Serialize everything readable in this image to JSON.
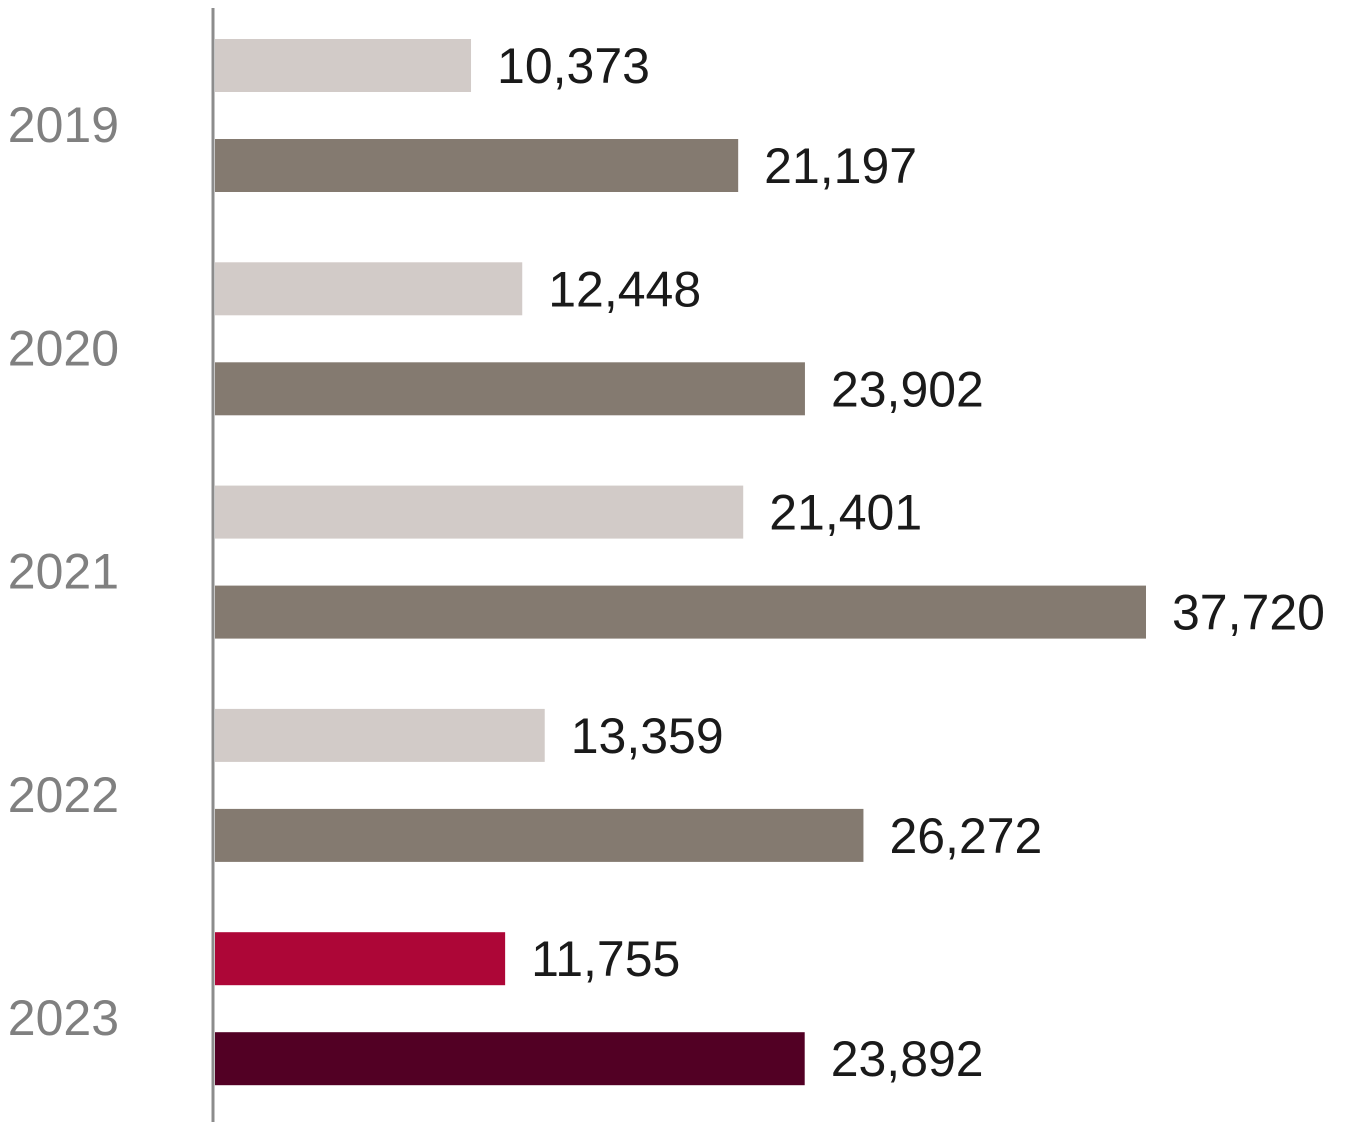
{
  "chart_data": {
    "type": "bar",
    "orientation": "horizontal",
    "categories": [
      "2019",
      "2020",
      "2021",
      "2022",
      "2023"
    ],
    "series": [
      {
        "values": [
          10373,
          12448,
          21401,
          13359,
          11755
        ]
      },
      {
        "values": [
          21197,
          23902,
          37720,
          26272,
          23892
        ]
      }
    ],
    "value_labels": [
      [
        "10,373",
        "12,448",
        "21,401",
        "13,359",
        "11,755"
      ],
      [
        "21,197",
        "23,902",
        "37,720",
        "26,272",
        "23,892"
      ]
    ],
    "bar_colors": [
      [
        "#d2cbc8",
        "#d2cbc8",
        "#d2cbc8",
        "#d2cbc8",
        "#ad0637"
      ],
      [
        "#847a70",
        "#847a70",
        "#847a70",
        "#847a70",
        "#520024"
      ]
    ],
    "axis_color": "#8c8c8c",
    "xlim": [
      0,
      37720
    ],
    "grid": false,
    "legend": "none"
  }
}
